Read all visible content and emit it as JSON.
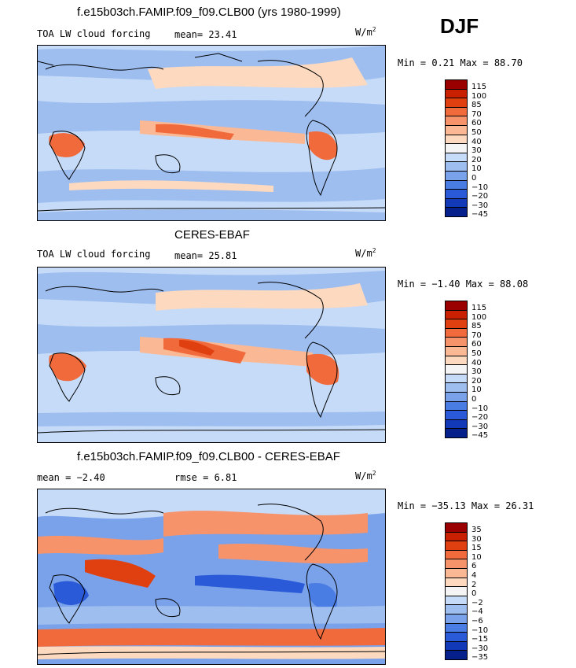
{
  "season": "DJF",
  "units_base": "W/m",
  "units_exp": "2",
  "panels": [
    {
      "title": "f.e15b03ch.FAMIP.f09_f09.CLB00 (yrs 1980-1999)",
      "left_label": "TOA LW cloud forcing",
      "stat1": "mean=  23.41",
      "stat2": "",
      "minmax": "Min =   0.21 Max =  88.70",
      "legend_colors": [
        "#9b0000",
        "#c82000",
        "#e04010",
        "#f06a3c",
        "#f7936b",
        "#fab895",
        "#fcd9bf",
        "#f4f4f4",
        "#c6dbf7",
        "#9ebef0",
        "#7aa2ea",
        "#4a7de4",
        "#2a5ad8",
        "#1239b8",
        "#05208a"
      ],
      "legend_ticks": [
        "115",
        "100",
        "85",
        "70",
        "60",
        "50",
        "40",
        "30",
        "20",
        "10",
        "0",
        "−10",
        "−20",
        "−30",
        "−45"
      ]
    },
    {
      "title": "CERES-EBAF",
      "left_label": "TOA LW cloud forcing",
      "stat1": "mean=  25.81",
      "stat2": "",
      "minmax": "Min =  −1.40 Max =  88.08",
      "legend_colors": [
        "#9b0000",
        "#c82000",
        "#e04010",
        "#f06a3c",
        "#f7936b",
        "#fab895",
        "#fcd9bf",
        "#f4f4f4",
        "#c6dbf7",
        "#9ebef0",
        "#7aa2ea",
        "#4a7de4",
        "#2a5ad8",
        "#1239b8",
        "#05208a"
      ],
      "legend_ticks": [
        "115",
        "100",
        "85",
        "70",
        "60",
        "50",
        "40",
        "30",
        "20",
        "10",
        "0",
        "−10",
        "−20",
        "−30",
        "−45"
      ]
    },
    {
      "title": "f.e15b03ch.FAMIP.f09_f09.CLB00 - CERES-EBAF",
      "left_label": "mean =  −2.40",
      "stat1": "rmse =   6.81",
      "stat2": "",
      "minmax": "Min = −35.13 Max =  26.31",
      "legend_colors": [
        "#9b0000",
        "#c82000",
        "#e04010",
        "#f06a3c",
        "#f7936b",
        "#fab895",
        "#fcd9bf",
        "#f4f4f4",
        "#c6dbf7",
        "#9ebef0",
        "#7aa2ea",
        "#4a7de4",
        "#2a5ad8",
        "#1239b8",
        "#05208a"
      ],
      "legend_ticks": [
        "35",
        "30",
        "15",
        "10",
        "6",
        "4",
        "2",
        "0",
        "−2",
        "−4",
        "−6",
        "−10",
        "−15",
        "−30",
        "−35"
      ]
    }
  ]
}
